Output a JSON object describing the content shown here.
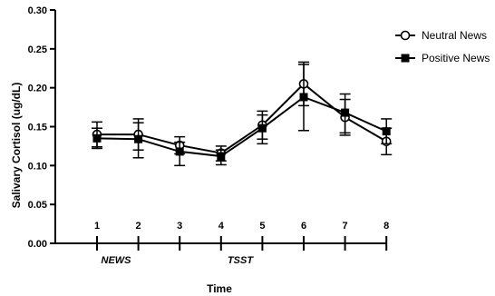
{
  "chart_data": {
    "type": "line",
    "title": "",
    "xlabel": "Time",
    "ylabel": "Salivary Cortisol (ug/dL)",
    "x": [
      1,
      2,
      3,
      4,
      5,
      6,
      7,
      8
    ],
    "ylim": [
      0,
      0.3
    ],
    "yticks": [
      "0.00",
      "0.05",
      "0.10",
      "0.15",
      "0.20",
      "0.25",
      "0.30"
    ],
    "xtick_labels": [
      "1",
      "2",
      "3",
      "4",
      "5",
      "6",
      "7",
      "8"
    ],
    "phase_labels": [
      "NEWS",
      "TSST"
    ],
    "legend_position": "top-right",
    "grid": false,
    "series": [
      {
        "name": "Neutral News",
        "marker": "open-circle",
        "color": "#000000",
        "values": [
          0.14,
          0.14,
          0.126,
          0.116,
          0.152,
          0.205,
          0.162,
          0.131
        ],
        "error_upper": [
          0.156,
          0.16,
          0.137,
          0.125,
          0.17,
          0.233,
          0.185,
          0.148
        ],
        "error_lower": [
          0.124,
          0.12,
          0.115,
          0.106,
          0.134,
          0.177,
          0.139,
          0.114
        ]
      },
      {
        "name": "Positive News",
        "marker": "filled-square",
        "color": "#000000",
        "values": [
          0.135,
          0.134,
          0.118,
          0.112,
          0.148,
          0.188,
          0.168,
          0.144
        ],
        "error_upper": [
          0.148,
          0.155,
          0.13,
          0.12,
          0.165,
          0.23,
          0.192,
          0.16
        ],
        "error_lower": [
          0.122,
          0.11,
          0.1,
          0.101,
          0.128,
          0.145,
          0.142,
          0.128
        ]
      }
    ]
  }
}
